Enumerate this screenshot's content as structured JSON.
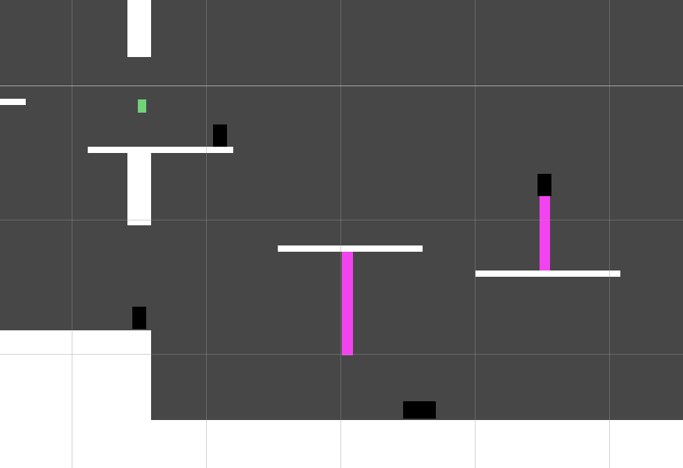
{
  "scene": {
    "colors": {
      "background_dark": "#474747",
      "floor_white": "#ffffff",
      "platform_white": "#ffffff",
      "enemy_black": "#000000",
      "laser_magenta": "#f343f0",
      "player_green": "#6fd37a",
      "grid_line": "#969696"
    },
    "objects": [
      "player",
      "enemy-block",
      "laser-beam",
      "white-platform",
      "white-pillar",
      "ground-floor"
    ]
  }
}
